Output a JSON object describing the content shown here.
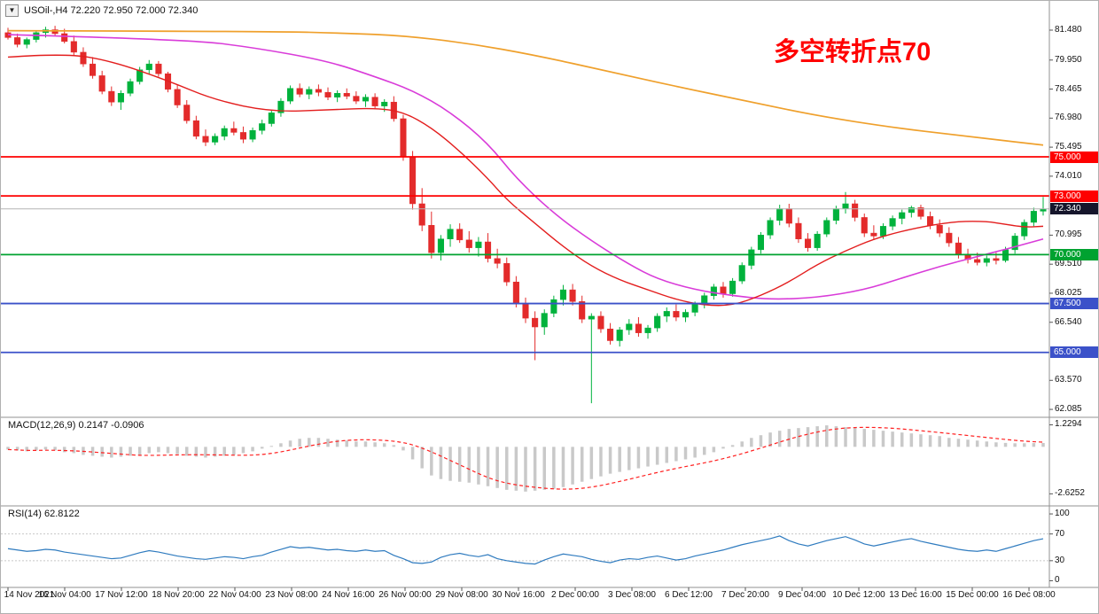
{
  "header": {
    "title": "USOil-,H4 72.220 72.950 72.000 72.340"
  },
  "annotation": {
    "text": "多空转折点70",
    "color": "#ff0000"
  },
  "macd": {
    "label_full": "MACD(12,26,9) 0.2147 -0.0906"
  },
  "rsi": {
    "label_full": "RSI(14) 62.8122"
  },
  "colors": {
    "up": "#00b23c",
    "down": "#e32b2b",
    "ma_orange": "#efa02c",
    "ma_magenta": "#d93cd9",
    "ma_red": "#e31e1e",
    "macd_hist": "#c9c9c9",
    "macd_signal": "#ff2020",
    "rsi_line": "#2f7bbf",
    "level_dash": "#c8c8c8",
    "separator": "#909090",
    "current_line": "#b4b4b4",
    "badge_red": "#fe0000",
    "badge_green": "#00a230",
    "badge_blue": "#3b51c9",
    "badge_dark": "#16162c"
  },
  "hlines": [
    {
      "p": 75.0,
      "color": "#fe0000"
    },
    {
      "p": 73.0,
      "color": "#fe0000"
    },
    {
      "p": 70.0,
      "color": "#00a230"
    },
    {
      "p": 67.5,
      "color": "#3b51c9"
    },
    {
      "p": 65.0,
      "color": "#3b51c9"
    }
  ],
  "current_price": {
    "p": 72.34,
    "t": "72.340"
  },
  "price_axis": {
    "labels": [
      {
        "p": 81.48,
        "t": "81.480"
      },
      {
        "p": 79.95,
        "t": "79.950"
      },
      {
        "p": 78.465,
        "t": "78.465"
      },
      {
        "p": 76.98,
        "t": "76.980"
      },
      {
        "p": 75.495,
        "t": "75.495"
      },
      {
        "p": 74.01,
        "t": "74.010"
      },
      {
        "p": 70.995,
        "t": "70.995"
      },
      {
        "p": 69.51,
        "t": "69.510"
      },
      {
        "p": 68.025,
        "t": "68.025"
      },
      {
        "p": 66.54,
        "t": "66.540"
      },
      {
        "p": 63.57,
        "t": "63.570"
      },
      {
        "p": 62.085,
        "t": "62.085"
      }
    ],
    "badges": [
      {
        "p": 75.0,
        "t": "75.000",
        "bg": "#fe0000"
      },
      {
        "p": 73.0,
        "t": "73.000",
        "bg": "#fe0000"
      },
      {
        "p": 72.34,
        "t": "72.340",
        "bg": "#16162c"
      },
      {
        "p": 70.0,
        "t": "70.000",
        "bg": "#00a230"
      },
      {
        "p": 67.5,
        "t": "67.500",
        "bg": "#3b51c9"
      },
      {
        "p": 65.0,
        "t": "65.000",
        "bg": "#3b51c9"
      }
    ],
    "macd_axis": [
      {
        "v": 1.2294,
        "t": "1.2294"
      },
      {
        "v": -2.6252,
        "t": "-2.6252"
      }
    ],
    "rsi_axis": [
      {
        "v": 100,
        "t": "100"
      },
      {
        "v": 70,
        "t": "70"
      },
      {
        "v": 30,
        "t": "30"
      },
      {
        "v": 0,
        "t": "0"
      }
    ]
  },
  "chart_data": {
    "type": "candlestick",
    "symbol": "USOil-",
    "timeframe": "H4",
    "title": "USOil-,H4",
    "ohlc": {
      "open": 72.22,
      "high": 72.95,
      "low": 72.0,
      "close": 72.34
    },
    "y_range": [
      61.68,
      82.975
    ],
    "levels": {
      "resistance": [
        75.0,
        73.0
      ],
      "pivot": 70.0,
      "support": [
        67.5,
        65.0
      ]
    },
    "candles": [
      [
        81.35,
        81.6,
        81.0,
        81.1
      ],
      [
        81.1,
        81.3,
        80.6,
        80.75
      ],
      [
        80.75,
        81.1,
        80.55,
        81.0
      ],
      [
        81.0,
        81.45,
        80.85,
        81.35
      ],
      [
        81.35,
        81.65,
        81.1,
        81.5
      ],
      [
        81.5,
        81.7,
        81.2,
        81.3
      ],
      [
        81.3,
        81.55,
        80.8,
        80.9
      ],
      [
        80.9,
        81.2,
        80.2,
        80.35
      ],
      [
        80.35,
        80.6,
        79.6,
        79.75
      ],
      [
        79.75,
        80.1,
        79.0,
        79.15
      ],
      [
        79.15,
        79.4,
        78.2,
        78.35
      ],
      [
        78.35,
        78.6,
        77.6,
        77.8
      ],
      [
        77.8,
        78.4,
        77.4,
        78.25
      ],
      [
        78.25,
        79.0,
        78.1,
        78.85
      ],
      [
        78.85,
        79.6,
        78.7,
        79.45
      ],
      [
        79.45,
        79.95,
        79.2,
        79.75
      ],
      [
        79.75,
        79.9,
        79.1,
        79.25
      ],
      [
        79.25,
        79.35,
        78.3,
        78.45
      ],
      [
        78.45,
        78.7,
        77.5,
        77.65
      ],
      [
        77.65,
        77.9,
        76.7,
        76.85
      ],
      [
        76.85,
        77.1,
        75.9,
        76.05
      ],
      [
        76.05,
        76.4,
        75.55,
        75.75
      ],
      [
        75.75,
        76.2,
        75.6,
        76.05
      ],
      [
        76.05,
        76.6,
        75.85,
        76.45
      ],
      [
        76.45,
        76.8,
        76.1,
        76.25
      ],
      [
        76.25,
        76.55,
        75.7,
        75.9
      ],
      [
        75.9,
        76.5,
        75.75,
        76.35
      ],
      [
        76.35,
        76.9,
        76.15,
        76.7
      ],
      [
        76.7,
        77.4,
        76.55,
        77.25
      ],
      [
        77.25,
        78.0,
        77.05,
        77.85
      ],
      [
        77.85,
        78.65,
        77.7,
        78.5
      ],
      [
        78.5,
        78.75,
        78.05,
        78.2
      ],
      [
        78.2,
        78.6,
        77.95,
        78.45
      ],
      [
        78.45,
        78.7,
        78.1,
        78.3
      ],
      [
        78.3,
        78.55,
        77.9,
        78.05
      ],
      [
        78.05,
        78.4,
        77.8,
        78.25
      ],
      [
        78.25,
        78.5,
        77.95,
        78.1
      ],
      [
        78.1,
        78.35,
        77.7,
        77.85
      ],
      [
        77.85,
        78.2,
        77.55,
        78.05
      ],
      [
        78.05,
        78.25,
        77.45,
        77.6
      ],
      [
        77.6,
        77.95,
        77.3,
        77.8
      ],
      [
        77.8,
        78.1,
        76.8,
        76.95
      ],
      [
        76.95,
        77.15,
        74.8,
        75.0
      ],
      [
        75.0,
        75.3,
        72.3,
        72.6
      ],
      [
        72.6,
        73.4,
        71.2,
        71.5
      ],
      [
        71.5,
        72.2,
        69.8,
        70.1
      ],
      [
        70.1,
        71.0,
        69.7,
        70.8
      ],
      [
        70.8,
        71.55,
        70.4,
        71.3
      ],
      [
        71.3,
        71.6,
        70.6,
        70.75
      ],
      [
        70.75,
        71.2,
        70.1,
        70.35
      ],
      [
        70.35,
        70.9,
        69.9,
        70.65
      ],
      [
        70.65,
        71.1,
        69.6,
        69.8
      ],
      [
        69.8,
        70.3,
        69.3,
        69.55
      ],
      [
        69.55,
        69.85,
        68.4,
        68.6
      ],
      [
        68.6,
        68.9,
        67.3,
        67.5
      ],
      [
        67.5,
        67.8,
        66.5,
        66.75
      ],
      [
        66.75,
        67.1,
        64.6,
        66.3
      ],
      [
        66.3,
        67.2,
        65.9,
        67.0
      ],
      [
        67.0,
        67.9,
        66.8,
        67.7
      ],
      [
        67.7,
        68.45,
        67.4,
        68.2
      ],
      [
        68.2,
        68.5,
        67.4,
        67.6
      ],
      [
        67.6,
        67.9,
        66.5,
        66.7
      ],
      [
        66.7,
        67.0,
        62.4,
        66.85
      ],
      [
        66.85,
        67.1,
        66.0,
        66.2
      ],
      [
        66.2,
        66.5,
        65.4,
        65.6
      ],
      [
        65.6,
        66.3,
        65.3,
        66.15
      ],
      [
        66.15,
        66.7,
        65.9,
        66.45
      ],
      [
        66.45,
        66.8,
        65.8,
        66.0
      ],
      [
        66.0,
        66.4,
        65.7,
        66.25
      ],
      [
        66.25,
        67.0,
        66.05,
        66.85
      ],
      [
        66.85,
        67.3,
        66.55,
        67.1
      ],
      [
        67.1,
        67.45,
        66.6,
        66.8
      ],
      [
        66.8,
        67.2,
        66.55,
        67.05
      ],
      [
        67.05,
        67.6,
        66.85,
        67.45
      ],
      [
        67.45,
        68.05,
        67.25,
        67.9
      ],
      [
        67.9,
        68.5,
        67.7,
        68.35
      ],
      [
        68.35,
        68.6,
        67.8,
        68.0
      ],
      [
        68.0,
        68.8,
        67.85,
        68.65
      ],
      [
        68.65,
        69.6,
        68.5,
        69.45
      ],
      [
        69.45,
        70.4,
        69.25,
        70.25
      ],
      [
        70.25,
        71.15,
        70.05,
        71.0
      ],
      [
        71.0,
        71.9,
        70.8,
        71.75
      ],
      [
        71.75,
        72.55,
        71.5,
        72.35
      ],
      [
        72.35,
        72.6,
        71.4,
        71.6
      ],
      [
        71.6,
        71.9,
        70.6,
        70.8
      ],
      [
        70.8,
        71.1,
        70.15,
        70.35
      ],
      [
        70.35,
        71.2,
        70.2,
        71.05
      ],
      [
        71.05,
        71.9,
        70.9,
        71.75
      ],
      [
        71.75,
        72.5,
        71.55,
        72.35
      ],
      [
        72.35,
        73.2,
        72.1,
        72.6
      ],
      [
        72.6,
        72.8,
        71.7,
        71.9
      ],
      [
        71.9,
        72.1,
        70.9,
        71.1
      ],
      [
        71.1,
        71.5,
        70.75,
        70.95
      ],
      [
        70.95,
        71.6,
        70.8,
        71.45
      ],
      [
        71.45,
        72.0,
        71.25,
        71.85
      ],
      [
        71.85,
        72.3,
        71.55,
        72.15
      ],
      [
        72.15,
        72.5,
        71.9,
        72.4
      ],
      [
        72.4,
        72.55,
        71.8,
        71.95
      ],
      [
        71.95,
        72.2,
        71.3,
        71.5
      ],
      [
        71.5,
        71.8,
        70.9,
        71.1
      ],
      [
        71.1,
        71.4,
        70.4,
        70.6
      ],
      [
        70.6,
        70.9,
        69.8,
        70.0
      ],
      [
        70.0,
        70.3,
        69.55,
        69.75
      ],
      [
        69.75,
        70.1,
        69.45,
        69.6
      ],
      [
        69.6,
        69.95,
        69.4,
        69.8
      ],
      [
        69.8,
        70.1,
        69.5,
        69.7
      ],
      [
        69.7,
        70.4,
        69.6,
        70.25
      ],
      [
        70.25,
        71.1,
        70.05,
        70.95
      ],
      [
        70.95,
        71.8,
        70.75,
        71.65
      ],
      [
        71.65,
        72.4,
        71.45,
        72.22
      ],
      [
        72.22,
        72.95,
        72.0,
        72.34
      ]
    ],
    "ma_orange": [
      [
        0,
        81.45
      ],
      [
        28,
        81.42
      ],
      [
        36,
        81.32
      ],
      [
        42,
        81.2
      ],
      [
        49,
        80.8
      ],
      [
        56,
        80.2
      ],
      [
        64,
        79.35
      ],
      [
        71,
        78.6
      ],
      [
        79,
        77.8
      ],
      [
        86,
        77.1
      ],
      [
        94,
        76.5
      ],
      [
        101,
        76.1
      ],
      [
        110,
        75.6
      ]
    ],
    "ma_magenta": [
      [
        0,
        81.25
      ],
      [
        19,
        81.0
      ],
      [
        26,
        80.6
      ],
      [
        34,
        79.9
      ],
      [
        39,
        79.1
      ],
      [
        43,
        78.4
      ],
      [
        47,
        77.3
      ],
      [
        51,
        75.7
      ],
      [
        54,
        73.9
      ],
      [
        58,
        72.1
      ],
      [
        62,
        70.7
      ],
      [
        66,
        69.5
      ],
      [
        69,
        68.75
      ],
      [
        73,
        68.2
      ],
      [
        77,
        67.9
      ],
      [
        81,
        67.7
      ],
      [
        86,
        67.8
      ],
      [
        91,
        68.2
      ],
      [
        95,
        68.8
      ],
      [
        99,
        69.4
      ],
      [
        103,
        69.9
      ],
      [
        107,
        70.4
      ],
      [
        110,
        70.8
      ]
    ],
    "ma_red": [
      [
        0,
        80.1
      ],
      [
        6,
        80.3
      ],
      [
        11,
        79.9
      ],
      [
        17,
        78.9
      ],
      [
        22,
        77.9
      ],
      [
        28,
        77.3
      ],
      [
        34,
        77.4
      ],
      [
        39,
        77.5
      ],
      [
        42,
        77.3
      ],
      [
        45,
        76.5
      ],
      [
        48,
        75.3
      ],
      [
        51,
        73.9
      ],
      [
        53,
        72.8
      ],
      [
        56,
        71.6
      ],
      [
        59,
        70.4
      ],
      [
        62,
        69.4
      ],
      [
        65,
        68.7
      ],
      [
        68,
        68.2
      ],
      [
        71,
        67.7
      ],
      [
        74,
        67.4
      ],
      [
        77,
        67.4
      ],
      [
        80,
        67.9
      ],
      [
        83,
        68.6
      ],
      [
        86,
        69.5
      ],
      [
        89,
        70.2
      ],
      [
        92,
        70.8
      ],
      [
        95,
        71.2
      ],
      [
        98,
        71.5
      ],
      [
        101,
        71.7
      ],
      [
        104,
        71.7
      ],
      [
        106,
        71.55
      ],
      [
        108,
        71.4
      ],
      [
        110,
        71.45
      ]
    ],
    "macd_hist": [
      -0.15,
      -0.2,
      -0.25,
      -0.2,
      -0.15,
      -0.2,
      -0.3,
      -0.35,
      -0.45,
      -0.5,
      -0.55,
      -0.6,
      -0.55,
      -0.5,
      -0.45,
      -0.35,
      -0.3,
      -0.35,
      -0.4,
      -0.5,
      -0.55,
      -0.6,
      -0.55,
      -0.5,
      -0.45,
      -0.35,
      -0.25,
      -0.1,
      0.05,
      0.2,
      0.35,
      0.45,
      0.5,
      0.5,
      0.45,
      0.4,
      0.35,
      0.3,
      0.3,
      0.25,
      0.2,
      0.1,
      -0.2,
      -0.7,
      -1.2,
      -1.6,
      -1.8,
      -1.9,
      -1.95,
      -2.0,
      -2.1,
      -2.2,
      -2.3,
      -2.4,
      -2.45,
      -2.5,
      -2.45,
      -2.4,
      -2.35,
      -2.25,
      -2.1,
      -1.95,
      -1.8,
      -1.65,
      -1.5,
      -1.4,
      -1.3,
      -1.2,
      -1.1,
      -1.0,
      -0.9,
      -0.8,
      -0.7,
      -0.6,
      -0.45,
      -0.3,
      -0.1,
      0.1,
      0.3,
      0.5,
      0.65,
      0.8,
      0.9,
      1.0,
      1.05,
      1.1,
      1.15,
      1.2,
      1.15,
      1.1,
      1.05,
      1.0,
      0.95,
      0.9,
      0.85,
      0.8,
      0.75,
      0.7,
      0.65,
      0.6,
      0.5,
      0.45,
      0.4,
      0.35,
      0.3,
      0.25,
      0.22,
      0.2,
      0.2,
      0.21,
      0.2147
    ],
    "macd_range": [
      -3.3,
      1.65
    ],
    "rsi_values": [
      48,
      46,
      44,
      45,
      47,
      46,
      43,
      41,
      39,
      37,
      35,
      33,
      34,
      38,
      42,
      45,
      43,
      40,
      37,
      35,
      33,
      32,
      34,
      36,
      35,
      33,
      36,
      38,
      43,
      47,
      51,
      49,
      50,
      48,
      46,
      47,
      45,
      44,
      46,
      44,
      45,
      38,
      33,
      27,
      26,
      28,
      35,
      39,
      41,
      38,
      36,
      39,
      33,
      30,
      28,
      26,
      25,
      31,
      36,
      40,
      38,
      36,
      32,
      29,
      27,
      31,
      33,
      32,
      35,
      37,
      34,
      31,
      33,
      37,
      40,
      43,
      46,
      50,
      54,
      57,
      60,
      63,
      67,
      60,
      55,
      52,
      56,
      60,
      63,
      66,
      61,
      55,
      52,
      55,
      58,
      61,
      63,
      59,
      56,
      53,
      50,
      47,
      45,
      44,
      46,
      44,
      48,
      52,
      56,
      60,
      62.81
    ],
    "rsi_levels": [
      30,
      70
    ],
    "rsi_range": [
      0,
      100
    ],
    "time_labels": [
      "14 Nov 2021",
      "16 Nov 04:00",
      "17 Nov 12:00",
      "18 Nov 20:00",
      "22 Nov 04:00",
      "23 Nov 08:00",
      "24 Nov 16:00",
      "26 Nov 00:00",
      "29 Nov 08:00",
      "30 Nov 16:00",
      "2 Dec 00:00",
      "3 Dec 08:00",
      "6 Dec 12:00",
      "7 Dec 20:00",
      "9 Dec 04:00",
      "10 Dec 12:00",
      "13 Dec 16:00",
      "15 Dec 00:00",
      "16 Dec 08:00"
    ]
  }
}
